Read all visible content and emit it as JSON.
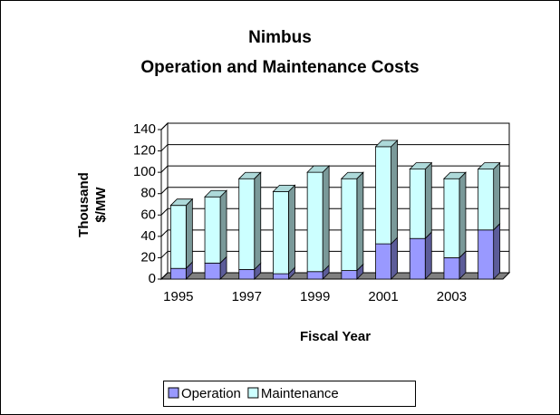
{
  "chart_data": {
    "type": "bar3d_stacked",
    "title": [
      "Nimbus",
      "Operation and Maintenance Costs"
    ],
    "y_label": [
      "Thousand",
      "$/MW"
    ],
    "x_label": "Fiscal Year",
    "categories": [
      "1995",
      null,
      "1997",
      null,
      "1999",
      null,
      "2001",
      null,
      "2003",
      null
    ],
    "series": [
      {
        "name": "Operation",
        "color": "#9999ff",
        "values": [
          10,
          15,
          9,
          5,
          7,
          8,
          33,
          38,
          20,
          46
        ]
      },
      {
        "name": "Maintenance",
        "color": "#ccffff",
        "values": [
          59,
          62,
          85,
          77,
          93,
          86,
          91,
          65,
          74,
          57
        ]
      }
    ],
    "ylim": [
      0,
      140
    ],
    "yticks": [
      0,
      20,
      40,
      60,
      80,
      100,
      120,
      140
    ],
    "grid": true,
    "legend": "bottom"
  }
}
